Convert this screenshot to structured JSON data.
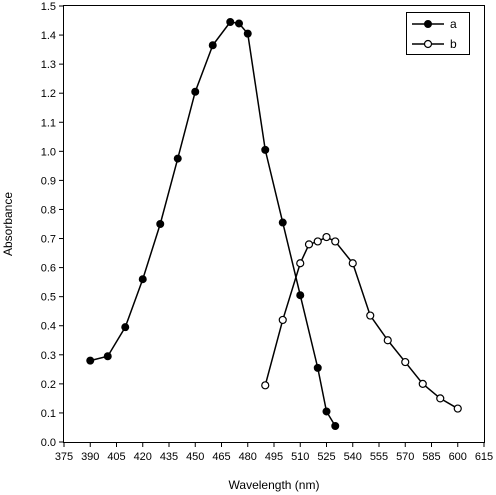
{
  "chart_data": {
    "type": "line",
    "xlabel": "Wavelength (nm)",
    "ylabel": "Absorbance",
    "xlim": [
      375,
      615
    ],
    "ylim": [
      0.0,
      1.5
    ],
    "xticks": [
      "375",
      "390",
      "405",
      "420",
      "435",
      "450",
      "465",
      "480",
      "495",
      "510",
      "525",
      "540",
      "555",
      "570",
      "585",
      "600",
      "615"
    ],
    "yticks": [
      "0.0",
      "0.1",
      "0.2",
      "0.3",
      "0.4",
      "0.5",
      "0.6",
      "0.7",
      "0.8",
      "0.9",
      "1.0",
      "1.1",
      "1.2",
      "1.3",
      "1.4",
      "1.5"
    ],
    "grid": false,
    "legend_position": "top-right",
    "series": [
      {
        "name": "a",
        "marker": "filled-circle",
        "color": "#000000",
        "x": [
          390,
          400,
          410,
          420,
          430,
          440,
          450,
          460,
          470,
          475,
          480,
          490,
          500,
          510,
          520,
          525,
          530
        ],
        "y": [
          0.28,
          0.295,
          0.395,
          0.56,
          0.75,
          0.975,
          1.205,
          1.365,
          1.445,
          1.44,
          1.405,
          1.005,
          0.755,
          0.505,
          0.255,
          0.105,
          0.055
        ]
      },
      {
        "name": "b",
        "marker": "open-circle",
        "color": "#000000",
        "x": [
          490,
          500,
          510,
          515,
          520,
          525,
          530,
          540,
          550,
          560,
          570,
          580,
          590,
          600
        ],
        "y": [
          0.195,
          0.42,
          0.615,
          0.68,
          0.69,
          0.705,
          0.69,
          0.615,
          0.435,
          0.35,
          0.275,
          0.2,
          0.15,
          0.115
        ]
      }
    ]
  }
}
